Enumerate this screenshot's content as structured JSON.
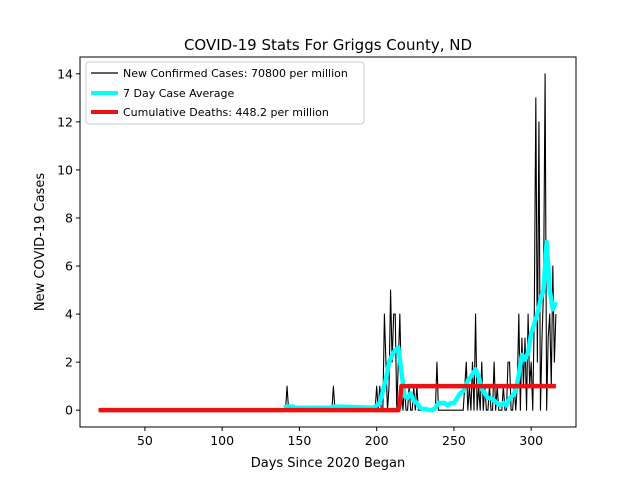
{
  "chart_data": {
    "type": "line",
    "title": "COVID-19 Stats For Griggs County, ND",
    "xlabel": "Days Since 2020 Began",
    "ylabel": "New COVID-19 Cases",
    "xlim": [
      8,
      329
    ],
    "ylim": [
      -0.7,
      14.7
    ],
    "xticks": [
      50,
      100,
      150,
      200,
      250,
      300
    ],
    "yticks": [
      0,
      2,
      4,
      6,
      8,
      10,
      12,
      14
    ],
    "grid": false,
    "legend": "top-left",
    "series": [
      {
        "name": "New Confirmed Cases: 70800 per million",
        "color": "#000000",
        "style": "thin-line",
        "x": [
          20,
          140,
          141,
          142,
          143,
          170,
          171,
          172,
          173,
          198,
          199,
          200,
          201,
          202,
          203,
          204,
          205,
          206,
          207,
          208,
          209,
          210,
          211,
          212,
          213,
          214,
          215,
          216,
          217,
          218,
          219,
          220,
          221,
          222,
          223,
          224,
          225,
          226,
          227,
          228,
          229,
          230,
          238,
          239,
          240,
          256,
          257,
          258,
          259,
          260,
          261,
          262,
          263,
          264,
          265,
          266,
          267,
          268,
          269,
          270,
          271,
          272,
          273,
          274,
          275,
          276,
          277,
          278,
          279,
          280,
          281,
          282,
          283,
          284,
          285,
          286,
          287,
          288,
          289,
          290,
          291,
          292,
          293,
          294,
          295,
          296,
          297,
          298,
          299,
          300,
          301,
          302,
          303,
          304,
          305,
          306,
          307,
          308,
          309,
          310,
          311,
          312,
          313,
          314,
          315,
          316
        ],
        "y": [
          0,
          0,
          0,
          1,
          0,
          0,
          0,
          1,
          0,
          0,
          0,
          1,
          0,
          1,
          0,
          0,
          4,
          2,
          0,
          1,
          5,
          2,
          4,
          4,
          0,
          2,
          4,
          1,
          0,
          1,
          0,
          0,
          1,
          0,
          0,
          1,
          0,
          1,
          0,
          0,
          0,
          0,
          0,
          2,
          0,
          0,
          1,
          2,
          0,
          1,
          0,
          2,
          0,
          4,
          0,
          1,
          0,
          2,
          0,
          1,
          0,
          0,
          1,
          0,
          0,
          2,
          0,
          1,
          0,
          0,
          0,
          1,
          0,
          0,
          2,
          2,
          0,
          0,
          1,
          0,
          1,
          4,
          0,
          3,
          1,
          3,
          0,
          4,
          1,
          2,
          0,
          4,
          13,
          2,
          12,
          0,
          3,
          5,
          14,
          0,
          3,
          4,
          1,
          6,
          2,
          4
        ]
      },
      {
        "name": "7 Day Case Average",
        "color": "#00ffff",
        "style": "thick-line",
        "x": [
          140,
          142,
          144,
          146,
          147,
          170,
          172,
          174,
          176,
          198,
          200,
          202,
          204,
          206,
          208,
          210,
          212,
          214,
          216,
          218,
          220,
          222,
          224,
          226,
          228,
          230,
          232,
          234,
          236,
          238,
          240,
          242,
          244,
          246,
          248,
          250,
          252,
          254,
          256,
          258,
          260,
          262,
          264,
          266,
          268,
          270,
          272,
          274,
          276,
          278,
          280,
          282,
          284,
          286,
          288,
          290,
          292,
          294,
          296,
          298,
          300,
          302,
          304,
          306,
          308,
          310,
          312,
          314,
          316
        ],
        "y": [
          0.1,
          0.15,
          0.15,
          0.15,
          0.1,
          0.1,
          0.15,
          0.15,
          0.15,
          0.1,
          0.2,
          0.3,
          0.8,
          1.3,
          2.0,
          2.3,
          2.5,
          2.6,
          1.6,
          0.6,
          0.5,
          0.7,
          0.4,
          0.3,
          0.1,
          0.05,
          0.05,
          0.0,
          0.0,
          0.1,
          0.3,
          0.3,
          0.3,
          0.2,
          0.3,
          0.3,
          0.5,
          0.7,
          0.8,
          1.1,
          1.3,
          1.5,
          1.7,
          1.4,
          0.9,
          0.7,
          0.5,
          0.5,
          0.4,
          0.3,
          0.2,
          0.3,
          0.2,
          0.5,
          0.6,
          0.8,
          1.5,
          2.3,
          2.1,
          2.4,
          3.2,
          3.6,
          4.0,
          4.6,
          5.0,
          7.0,
          5.0,
          4.2,
          4.5
        ]
      },
      {
        "name": "Cumulative Deaths: 448.2 per million",
        "color": "#ee1111",
        "style": "thick-line",
        "x": [
          20,
          214,
          215,
          216,
          316
        ],
        "y": [
          0,
          0,
          0.3,
          1,
          1
        ]
      }
    ]
  }
}
